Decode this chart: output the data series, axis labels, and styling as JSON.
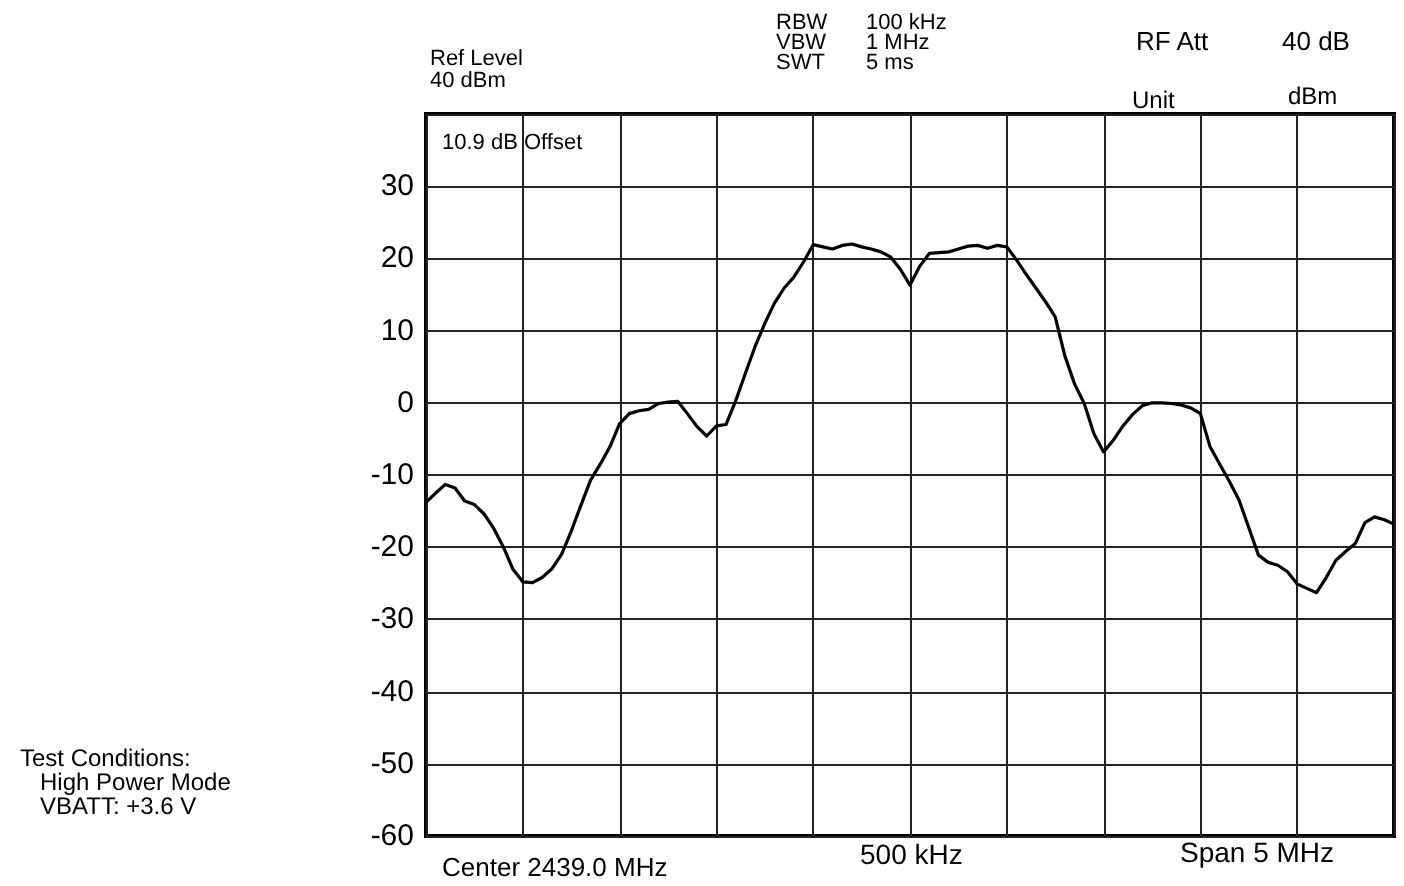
{
  "chart_data": {
    "type": "line",
    "categories": [
      null,
      null,
      null,
      null,
      null,
      null,
      null,
      null,
      null,
      null,
      null,
      null,
      null,
      null,
      null,
      null,
      null,
      null,
      null,
      null,
      null,
      null,
      null,
      null,
      null,
      null,
      null,
      null,
      null,
      null,
      null,
      null,
      null,
      null,
      null,
      null,
      null,
      null,
      null,
      null,
      null,
      null,
      null,
      null,
      null,
      null,
      null,
      null,
      null,
      null,
      null,
      null,
      null,
      null,
      null,
      null,
      null,
      null,
      null,
      null,
      null,
      null,
      null,
      null,
      null,
      null,
      null,
      null,
      null,
      null,
      null,
      null,
      null,
      null,
      null,
      null,
      null,
      null,
      null,
      null,
      null,
      null,
      null,
      null,
      null,
      null,
      null,
      null,
      null,
      null,
      null,
      null,
      null,
      null,
      null,
      null,
      null,
      null,
      null,
      null,
      null
    ],
    "series": [
      {
        "color": "#000000",
        "values": [
          -13.8,
          -12.5,
          -11.3,
          -11.8,
          -13.6,
          -14.1,
          -15.4,
          -17.4,
          -20.0,
          -23.1,
          -24.8,
          -24.9,
          -24.2,
          -23.0,
          -21.0,
          -17.8,
          -14.2,
          -10.7,
          -8.5,
          -6.1,
          -2.9,
          -1.5,
          -1.1,
          -0.9,
          -0.1,
          0.1,
          0.2,
          -1.5,
          -3.3,
          -4.6,
          -3.2,
          -3.0,
          0.3,
          4.1,
          7.8,
          11.0,
          13.8,
          15.9,
          17.4,
          19.5,
          21.9,
          21.6,
          21.3,
          21.8,
          22.0,
          21.6,
          21.3,
          20.9,
          20.2,
          18.5,
          16.3,
          18.9,
          20.7,
          20.8,
          20.9,
          21.3,
          21.7,
          21.8,
          21.4,
          21.8,
          21.6,
          19.8,
          17.8,
          15.9,
          14.0,
          11.9,
          6.5,
          2.6,
          -0.1,
          -4.3,
          -6.8,
          -5.2,
          -3.2,
          -1.6,
          -0.4,
          0.0,
          0.0,
          -0.1,
          -0.3,
          -0.7,
          -1.5,
          -6.1,
          -8.5,
          -10.9,
          -13.5,
          -17.3,
          -21.1,
          -22.1,
          -22.5,
          -23.4,
          -25.1,
          -25.7,
          -26.3,
          -24.2,
          -21.8,
          -20.6,
          -19.5,
          -16.6,
          -15.8,
          -16.2,
          -16.8
        ]
      }
    ],
    "ylim": [
      -60,
      40
    ],
    "yticks": [
      -60,
      -50,
      -40,
      -30,
      -20,
      -10,
      0,
      10,
      20,
      30,
      {
        "value": 40,
        "label": null
      }
    ],
    "tick_labels": "y",
    "grid": true,
    "line_style": "solid",
    "annotations": [
      "Ref Level\n40 dBm",
      "RBW\nVBW\nSWT",
      "100 kHz\n1 MHz\n5 ms",
      "RF Att",
      "40 dB",
      "Unit",
      "dBm",
      "10.9 dB Offset",
      "Center 2439.0 MHz",
      "500 kHz",
      "Span 5 MHz",
      "Test Conditions:\nHigh Power Mode\nVBATT: +3.6 V"
    ]
  }
}
